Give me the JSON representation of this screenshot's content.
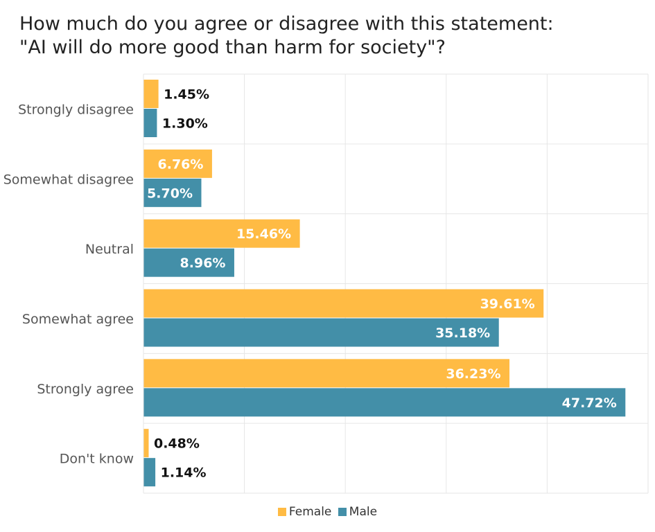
{
  "chart_data": {
    "type": "bar",
    "orientation": "horizontal",
    "title": [
      "How much do you agree or disagree with this statement:",
      "\"AI will do more good than harm for society\"?"
    ],
    "categories": [
      "Strongly disagree",
      "Somewhat disagree",
      "Neutral",
      "Somewhat agree",
      "Strongly agree",
      "Don't know"
    ],
    "series": [
      {
        "name": "Female",
        "color": "#FFBB44",
        "values": [
          1.45,
          6.76,
          15.46,
          39.61,
          36.23,
          0.48
        ],
        "labels": [
          "1.45%",
          "6.76%",
          "15.46%",
          "39.61%",
          "36.23%",
          "0.48%"
        ]
      },
      {
        "name": "Male",
        "color": "#438FA8",
        "values": [
          1.3,
          5.7,
          8.96,
          35.18,
          47.72,
          1.14
        ],
        "labels": [
          "1.30%",
          "5.70%",
          "8.96%",
          "35.18%",
          "47.72%",
          "1.14%"
        ]
      }
    ],
    "xlim": [
      0,
      50
    ],
    "xlabel": "",
    "ylabel": "",
    "grid": true,
    "legend": "bottom-center",
    "value_format": "percent"
  }
}
